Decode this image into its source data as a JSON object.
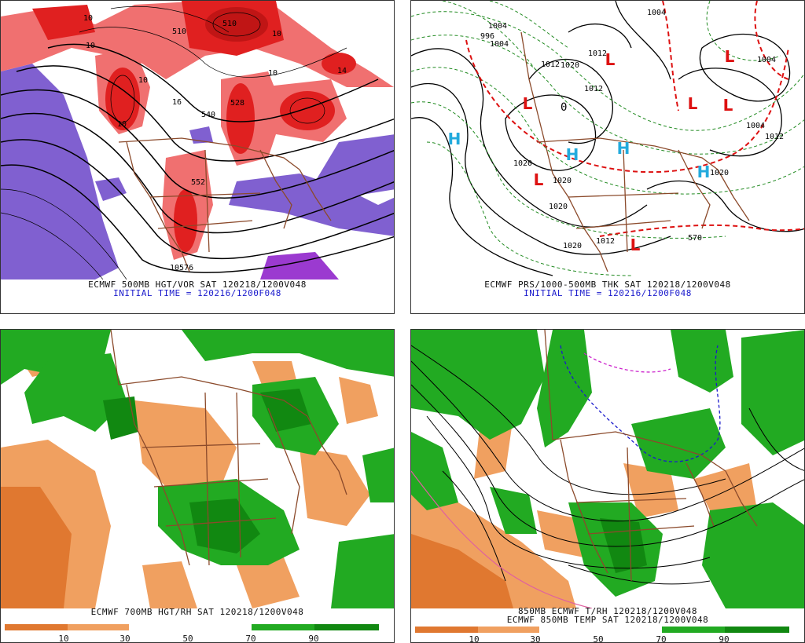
{
  "panels": {
    "p500": {
      "title": "ECMWF 500MB HGT/VOR SAT 120218/1200V048",
      "init": "INITIAL TIME = 120216/1200F048",
      "labels": [
        "10",
        "10",
        "510",
        "510",
        "10",
        "10",
        "10",
        "16",
        "540",
        "528",
        "552",
        "10",
        "10576",
        "14"
      ]
    },
    "pmslp": {
      "title": "ECMWF PRS/1000-500MB THK SAT 120218/1200V048",
      "init": "INITIAL TIME = 120216/1200F048",
      "labels": [
        "996",
        "1004",
        "1012",
        "1012",
        "1004",
        "1012",
        "1004",
        "1020",
        "1020",
        "1020",
        "1020",
        "1012",
        "1020",
        "1004",
        "570",
        "0",
        "1020",
        "1012",
        "1004"
      ]
    },
    "p700": {
      "title": "ECMWF 700MB HGT/RH SAT 120218/1200V048",
      "cbar_ticks": [
        "10",
        "30",
        "50",
        "70",
        "90"
      ]
    },
    "p850": {
      "title1": "850MB ECMWF T/RH 120218/1200V048",
      "title2": "ECMWF 850MB TEMP SAT 120218/1200V048",
      "cbar_ticks": [
        "10",
        "30",
        "50",
        "70",
        "90"
      ]
    }
  },
  "markers": {
    "high": "H",
    "low": "L"
  },
  "colors": {
    "vorticity_red": "#e02020",
    "vorticity_pink": "#f07070",
    "vorticity_purple": "#8060d0",
    "rh_green": "#22aa22",
    "rh_dark_green": "#118811",
    "rh_orange": "#f0a060",
    "rh_dark_orange": "#e07830",
    "high_cyan": "#22aadd",
    "low_red": "#dd1111",
    "border_brown": "#8b4a2b"
  }
}
